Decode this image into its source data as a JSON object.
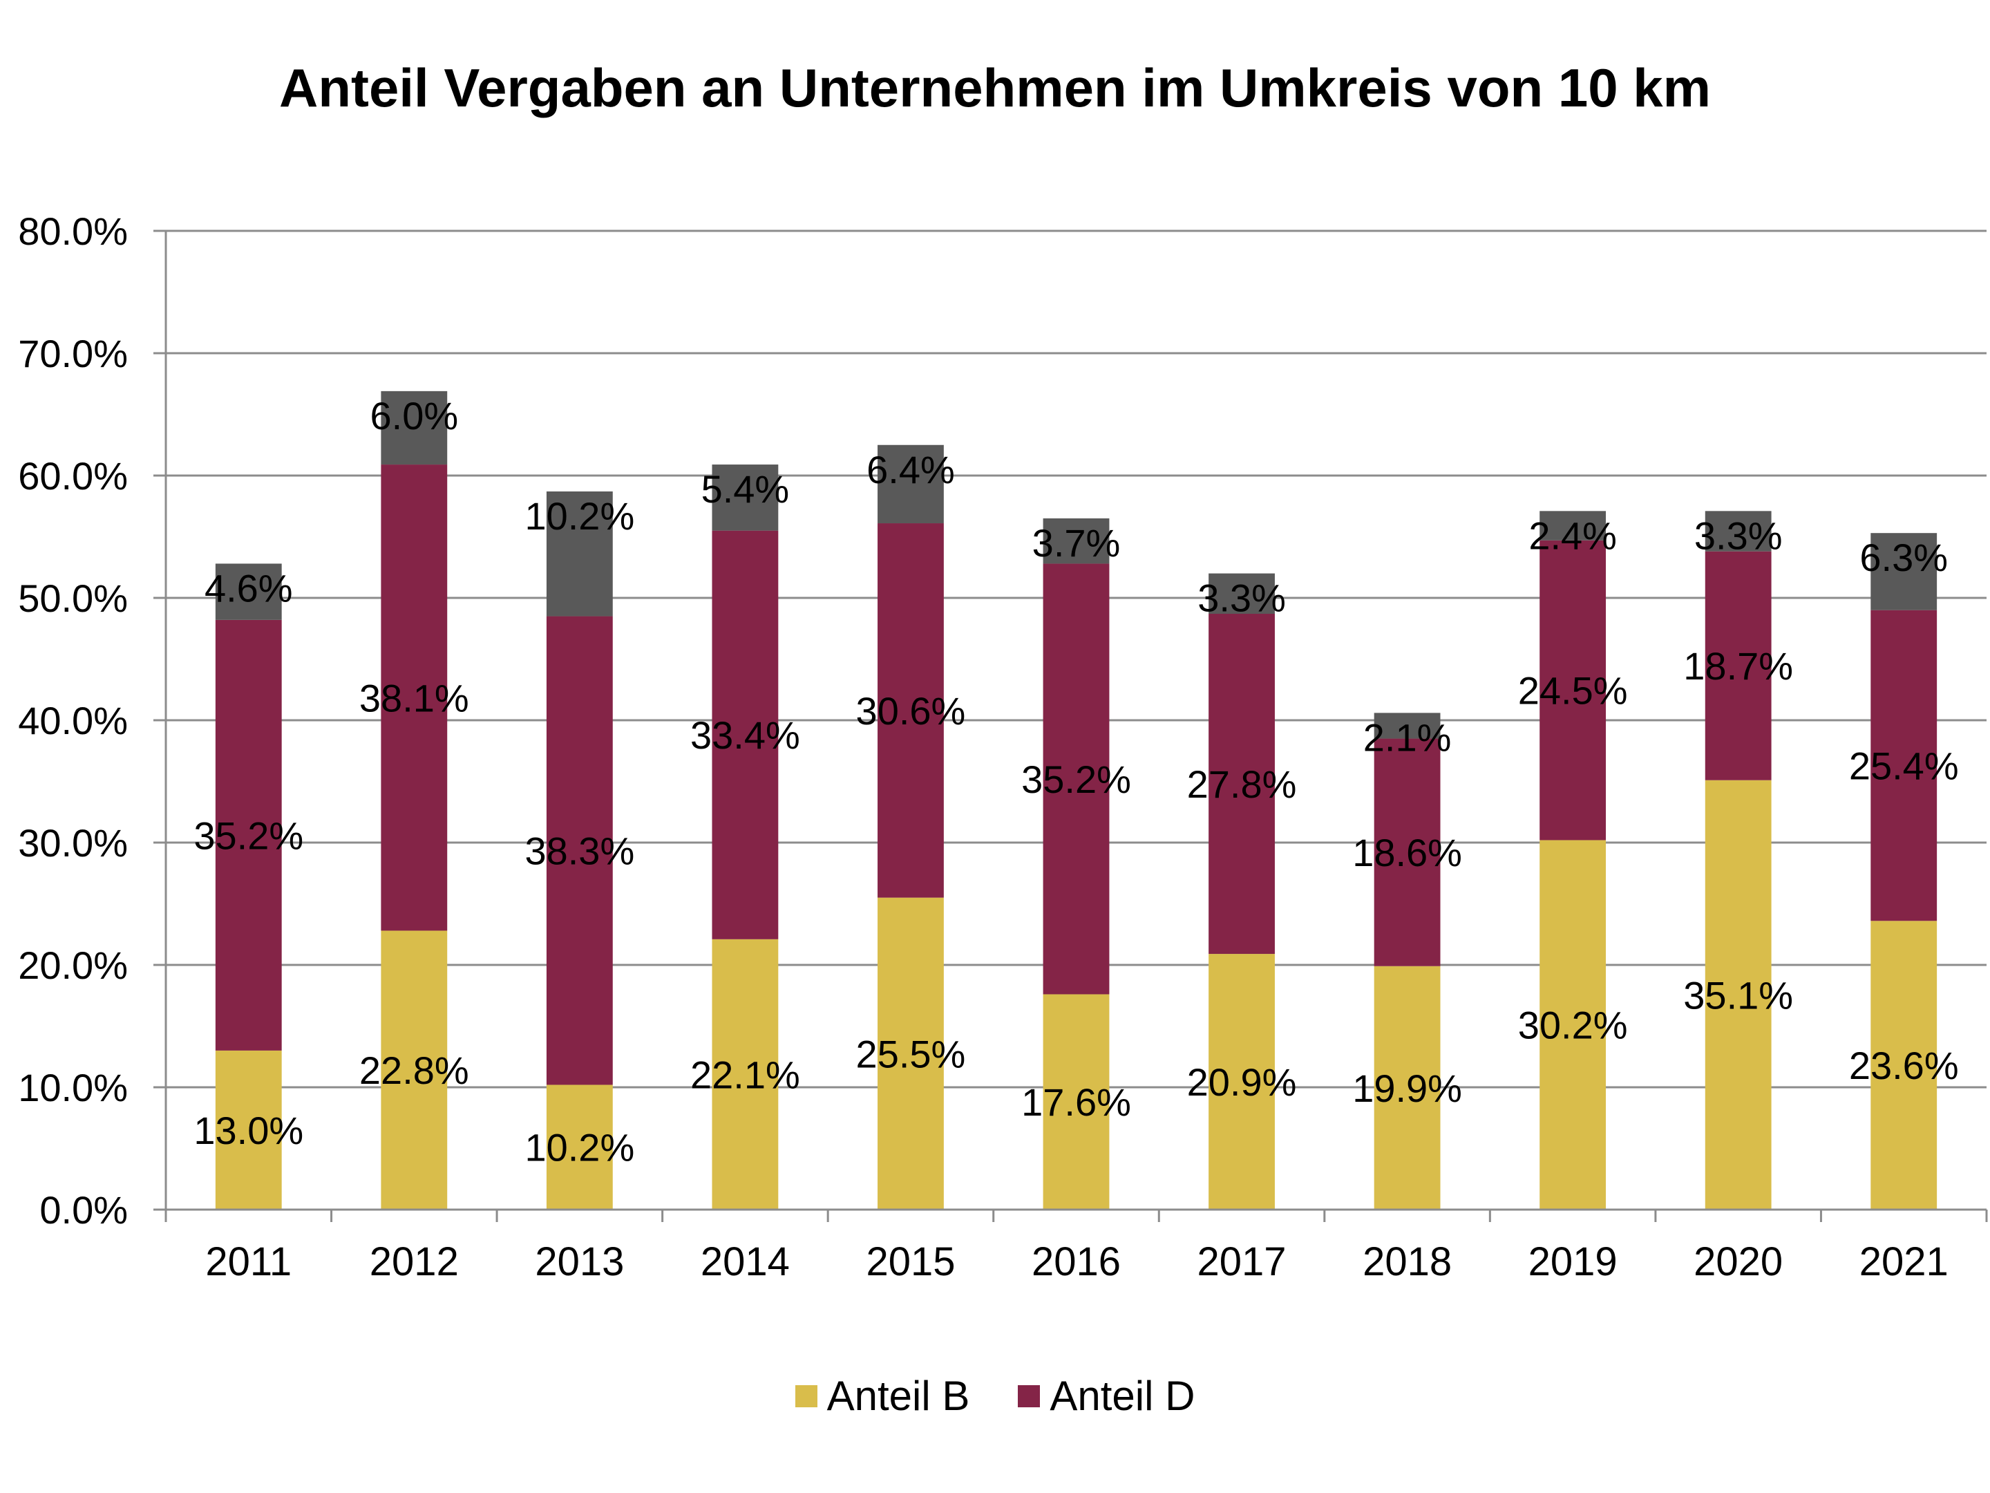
{
  "chart_data": {
    "type": "bar",
    "stacked": true,
    "title": "Anteil Vergaben an Unternehmen im Umkreis von 10 km",
    "xlabel": "",
    "ylabel": "",
    "categories": [
      "2011",
      "2012",
      "2013",
      "2014",
      "2015",
      "2016",
      "2017",
      "2018",
      "2019",
      "2020",
      "2021"
    ],
    "series": [
      {
        "name": "Anteil B",
        "color": "#D9BD4B",
        "in_legend": true,
        "values": [
          13.0,
          22.8,
          10.2,
          22.1,
          25.5,
          17.6,
          20.9,
          19.9,
          30.2,
          35.1,
          23.6
        ],
        "labels": [
          "13.0%",
          "22.8%",
          "10.2%",
          "22.1%",
          "25.5%",
          "17.6%",
          "20.9%",
          "19.9%",
          "30.2%",
          "35.1%",
          "23.6%"
        ]
      },
      {
        "name": "Anteil D",
        "color": "#842447",
        "in_legend": true,
        "values": [
          35.2,
          38.1,
          38.3,
          33.4,
          30.6,
          35.2,
          27.8,
          18.6,
          24.5,
          18.7,
          25.4
        ],
        "labels": [
          "35.2%",
          "38.1%",
          "38.3%",
          "33.4%",
          "30.6%",
          "35.2%",
          "27.8%",
          "18.6%",
          "24.5%",
          "18.7%",
          "25.4%"
        ]
      },
      {
        "name": "",
        "color": "#595959",
        "in_legend": false,
        "values": [
          4.6,
          6.0,
          10.2,
          5.4,
          6.4,
          3.7,
          3.3,
          2.1,
          2.4,
          3.3,
          6.3
        ],
        "labels": [
          "4.6%",
          "6.0%",
          "10.2%",
          "5.4%",
          "6.4%",
          "3.7%",
          "3.3%",
          "2.1%",
          "2.4%",
          "3.3%",
          "6.3%"
        ]
      }
    ],
    "ylim": [
      0,
      80
    ],
    "yticks": [
      0,
      10,
      20,
      30,
      40,
      50,
      60,
      70,
      80
    ],
    "ytick_labels": [
      "0.0%",
      "10.0%",
      "20.0%",
      "30.0%",
      "40.0%",
      "50.0%",
      "60.0%",
      "70.0%",
      "80.0%"
    ],
    "grid": true,
    "legend": {
      "position": "bottom",
      "entries": [
        "Anteil B",
        "Anteil D"
      ]
    }
  },
  "colors": {
    "gridline": "#8C8C8C",
    "axis": "#8C8C8C",
    "text": "#000000"
  }
}
